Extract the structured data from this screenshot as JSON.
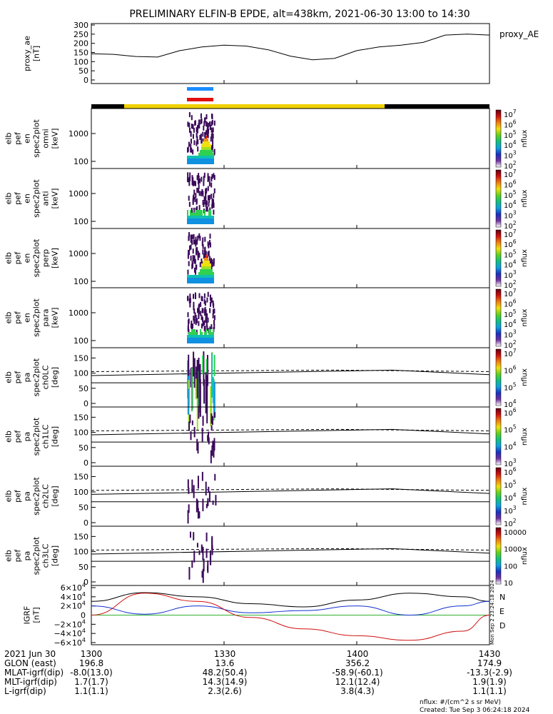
{
  "title": "PRELIMINARY ELFIN-B EPDE, alt=438km, 2021-06-30 13:00 to 14:30",
  "panels": [
    {
      "id": "ae",
      "ylabel": [
        "proxy_ae",
        "[nT]"
      ],
      "ticks": [
        "300",
        "250",
        "200",
        "150",
        "100",
        "50",
        "0"
      ],
      "rlabel": "proxy_AE"
    },
    {
      "id": "omni",
      "ylabel": [
        "elb",
        "pef",
        "en",
        "spec2plot",
        "omni",
        "[keV]"
      ],
      "ticks": [
        "1000",
        "100"
      ],
      "cb": [
        "10^7",
        "10^6",
        "10^5",
        "10^4",
        "10^3",
        "10^2"
      ],
      "cblabel": "nflux"
    },
    {
      "id": "anti",
      "ylabel": [
        "elb",
        "pef",
        "en",
        "spec2plot",
        "anti",
        "[keV]"
      ],
      "ticks": [
        "1000",
        "100"
      ],
      "cb": [
        "10^7",
        "10^6",
        "10^5",
        "10^4",
        "10^3",
        "10^2"
      ],
      "cblabel": "nflux"
    },
    {
      "id": "perp",
      "ylabel": [
        "elb",
        "pef",
        "en",
        "spec2plot",
        "perp",
        "[keV]"
      ],
      "ticks": [
        "1000",
        "100"
      ],
      "cb": [
        "10^7",
        "10^6",
        "10^5",
        "10^4",
        "10^3",
        "10^2"
      ],
      "cblabel": "nflux"
    },
    {
      "id": "para",
      "ylabel": [
        "elb",
        "pef",
        "en",
        "spec2plot",
        "para",
        "[keV]"
      ],
      "ticks": [
        "1000",
        "100"
      ],
      "cb": [
        "10^7",
        "10^6",
        "10^5",
        "10^4",
        "10^3",
        "10^2"
      ],
      "cblabel": "nflux"
    },
    {
      "id": "ch0",
      "ylabel": [
        "elb",
        "pef",
        "pa",
        "spec2plot",
        "ch0LC",
        "[deg]"
      ],
      "ticks": [
        "150",
        "100",
        "50",
        "0"
      ],
      "cb": [
        "10^7",
        "10^6",
        "10^5",
        "10^4"
      ],
      "cblabel": "nflux"
    },
    {
      "id": "ch1",
      "ylabel": [
        "elb",
        "pef",
        "pa",
        "spec2plot",
        "ch1LC",
        "[deg]"
      ],
      "ticks": [
        "150",
        "100",
        "50",
        "0"
      ],
      "cb": [
        "10^6",
        "10^5",
        "10^4",
        "10^3"
      ],
      "cblabel": "nflux"
    },
    {
      "id": "ch2",
      "ylabel": [
        "elb",
        "pef",
        "pa",
        "spec2plot",
        "ch2LC",
        "[deg]"
      ],
      "ticks": [
        "150",
        "100",
        "50",
        "0"
      ],
      "cb": [
        "10^6",
        "10^5",
        "10^4",
        "10^3",
        "10^2"
      ],
      "cblabel": "nflux"
    },
    {
      "id": "ch3",
      "ylabel": [
        "elb",
        "pef",
        "pa",
        "spec2plot",
        "ch3LC",
        "[deg]"
      ],
      "ticks": [
        "150",
        "100",
        "50",
        "0"
      ],
      "cb": [
        "10000",
        "1000",
        "100",
        "10"
      ],
      "cblabel": "nflux"
    },
    {
      "id": "igrf",
      "ylabel": [
        "IGRF",
        "[nT]"
      ],
      "ticks": [
        "6×10^4",
        "4×10^4",
        "2×10^4",
        "0",
        "−2×10^4",
        "−4×10^4",
        "−6×10^4"
      ],
      "legend": [
        "N",
        "E",
        "D"
      ]
    }
  ],
  "timestamp_vertical": "Mon Sep  2 23:24:18 2024",
  "footer": {
    "rows": [
      {
        "label": "2021 Jun 30",
        "values": [
          "1300",
          "1330",
          "1400",
          "1430"
        ]
      },
      {
        "label": "GLON (east)",
        "values": [
          "196.8",
          "13.6",
          "356.2",
          "174.9"
        ]
      },
      {
        "label": "MLAT-igrf(dip)",
        "values": [
          "-8.0(13.0)",
          "48.2(50.4)",
          "-58.9(-60.1)",
          "-13.3(-2.9)"
        ]
      },
      {
        "label": "MLT-igrf(dip)",
        "values": [
          "1.7(1.7)",
          "14.3(14.9)",
          "12.1(12.4)",
          "1.9(1.9)"
        ]
      },
      {
        "label": "L-igrf(dip)",
        "values": [
          "1.1(1.1)",
          "2.3(2.6)",
          "3.8(4.3)",
          "1.1(1.1)"
        ]
      }
    ],
    "note1": "nflux: #/(cm^2 s sr MeV)",
    "note2": "Created: Tue Sep  3 06:24:18 2024"
  },
  "chart_data": {
    "type": "multi-panel time series and spectrogram",
    "x_range": [
      "13:00",
      "14:30"
    ],
    "x_ticks": [
      "1300",
      "1330",
      "1400",
      "1430"
    ],
    "proxy_ae": {
      "time_min": [
        0,
        5,
        10,
        15,
        20,
        25,
        30,
        35,
        40,
        45,
        50,
        55,
        60,
        65,
        70,
        75,
        80,
        85,
        90
      ],
      "values": [
        143,
        140,
        128,
        125,
        160,
        180,
        190,
        185,
        165,
        130,
        110,
        118,
        160,
        180,
        190,
        205,
        245,
        250,
        245
      ]
    },
    "igrf": {
      "ylim": [
        -60000,
        60000
      ],
      "N": {
        "time_min": [
          0,
          12,
          24,
          36,
          48,
          60,
          72,
          84,
          90
        ],
        "values": [
          30000,
          49000,
          40000,
          25000,
          18000,
          33000,
          48000,
          40000,
          30000
        ]
      },
      "E": {
        "time_min": [
          0,
          12,
          24,
          36,
          48,
          60,
          72,
          84,
          90
        ],
        "values": [
          20000,
          2000,
          20000,
          5000,
          10000,
          20000,
          0,
          20000,
          30000
        ]
      },
      "D": {
        "time_min": [
          0,
          12,
          24,
          36,
          48,
          60,
          72,
          84,
          90
        ],
        "values": [
          0,
          48000,
          30000,
          -5000,
          -30000,
          -45000,
          -55000,
          -35000,
          0
        ]
      }
    },
    "pa_lines": {
      "dashed_deg": [
        105,
        110,
        105
      ],
      "solid_upper_deg": [
        92,
        110,
        95
      ],
      "solid_lower_deg": [
        68,
        68,
        68
      ]
    },
    "energy_ylim_keV": [
      50,
      5000
    ],
    "pa_ylim_deg": [
      0,
      180
    ]
  }
}
